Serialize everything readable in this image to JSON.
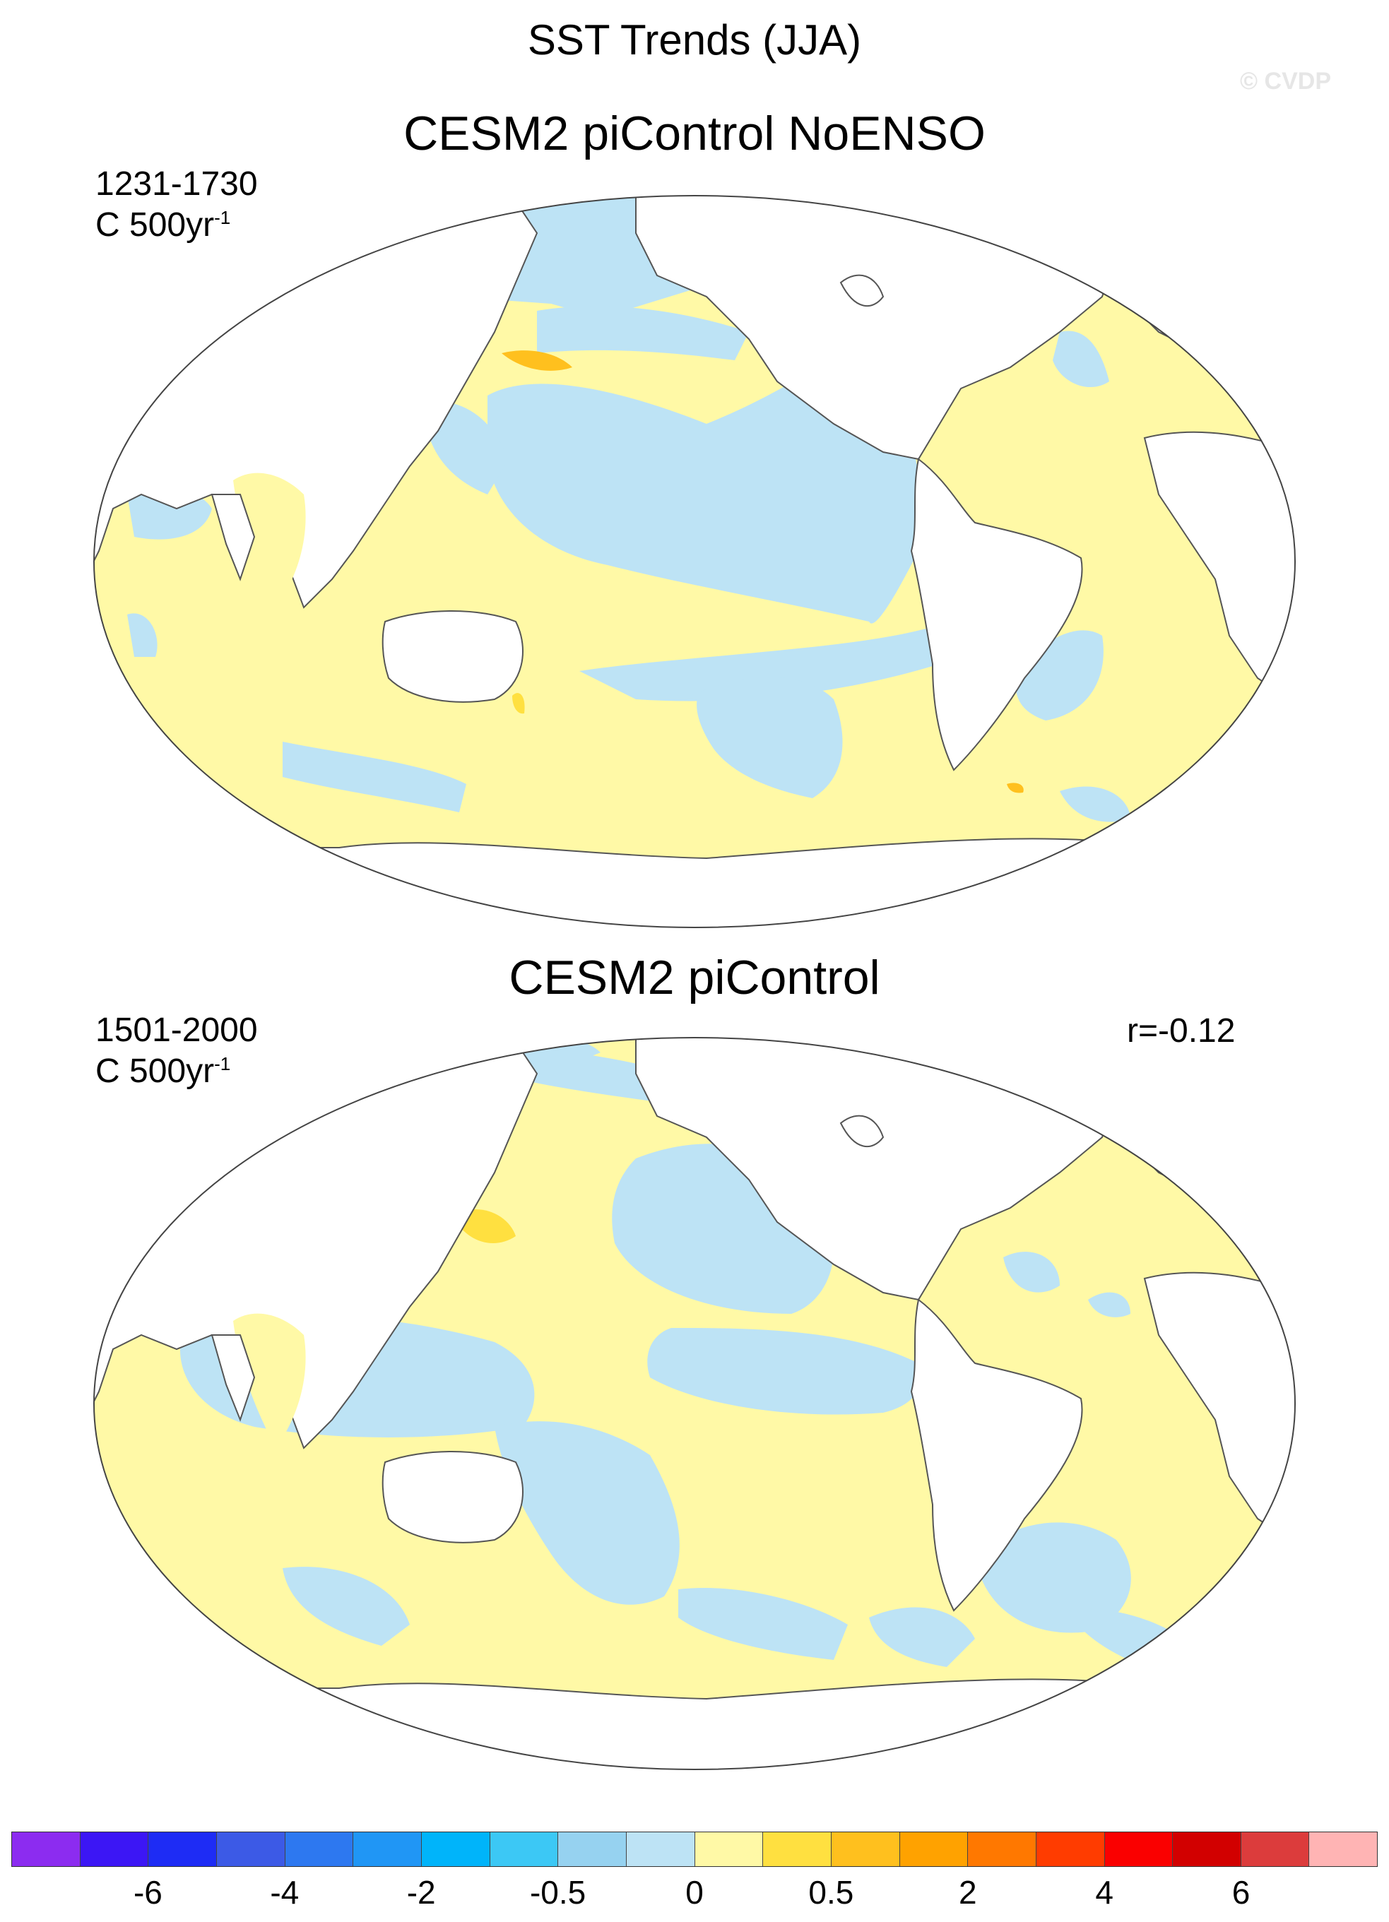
{
  "header": {
    "title": "SST Trends (JJA)",
    "copyright": "© CVDP"
  },
  "panels": [
    {
      "title": "CESM2 piControl NoENSO",
      "years": "1231-1730",
      "units_prefix": "C 500yr",
      "units_exp": "-1",
      "correlation": ""
    },
    {
      "title": "CESM2 piControl",
      "years": "1501-2000",
      "units_prefix": "C 500yr",
      "units_exp": "-1",
      "correlation": "r=-0.12"
    }
  ],
  "map": {
    "projection": "Robinson",
    "center": "Pacific",
    "field": "SST trend",
    "land_color": "#ffffff",
    "ocean_dominant_colors": [
      "#fff9a6",
      "#bde3f5"
    ]
  },
  "colorbar": {
    "colors": [
      "#8c2cf0",
      "#3c16f5",
      "#1e2cf5",
      "#3c5ae6",
      "#2d78f0",
      "#2096f5",
      "#00b4fa",
      "#3cc8f5",
      "#96d2f0",
      "#bde3f5",
      "#fff9a6",
      "#ffe040",
      "#ffc01e",
      "#ffa200",
      "#ff7800",
      "#ff3c00",
      "#fa0000",
      "#d20000",
      "#dc3c3c",
      "#ffb4b4"
    ],
    "labels": [
      "-6",
      "-4",
      "-2",
      "-0.5",
      "0",
      "0.5",
      "2",
      "4",
      "6"
    ],
    "label_positions_after_box": [
      2,
      4,
      6,
      8,
      10,
      12,
      14,
      16,
      18
    ]
  }
}
